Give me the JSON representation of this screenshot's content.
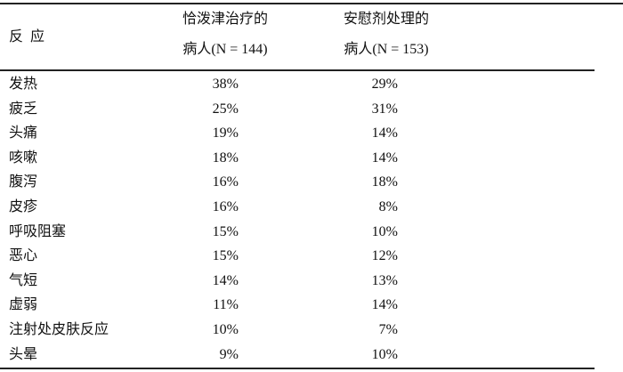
{
  "table": {
    "headers": {
      "reaction": "反  应",
      "col1_line1": "恰泼津治疗的",
      "col1_line2": "病人(N = 144)",
      "col2_line1": "安慰剂处理的",
      "col2_line2": "病人(N = 153)"
    },
    "rows": [
      {
        "reaction": "发热",
        "treated": "38%",
        "placebo": "29%"
      },
      {
        "reaction": "疲乏",
        "treated": "25%",
        "placebo": "31%"
      },
      {
        "reaction": "头痛",
        "treated": "19%",
        "placebo": "14%"
      },
      {
        "reaction": "咳嗽",
        "treated": "18%",
        "placebo": "14%"
      },
      {
        "reaction": "腹泻",
        "treated": "16%",
        "placebo": "18%"
      },
      {
        "reaction": "皮疹",
        "treated": "16%",
        "placebo": "8%"
      },
      {
        "reaction": "呼吸阻塞",
        "treated": "15%",
        "placebo": "10%"
      },
      {
        "reaction": "恶心",
        "treated": "15%",
        "placebo": "12%"
      },
      {
        "reaction": "气短",
        "treated": "14%",
        "placebo": "13%"
      },
      {
        "reaction": "虚弱",
        "treated": "11%",
        "placebo": "14%"
      },
      {
        "reaction": "注射处皮肤反应",
        "treated": "10%",
        "placebo": "7%"
      },
      {
        "reaction": "头晕",
        "treated": "9%",
        "placebo": "10%"
      }
    ]
  }
}
